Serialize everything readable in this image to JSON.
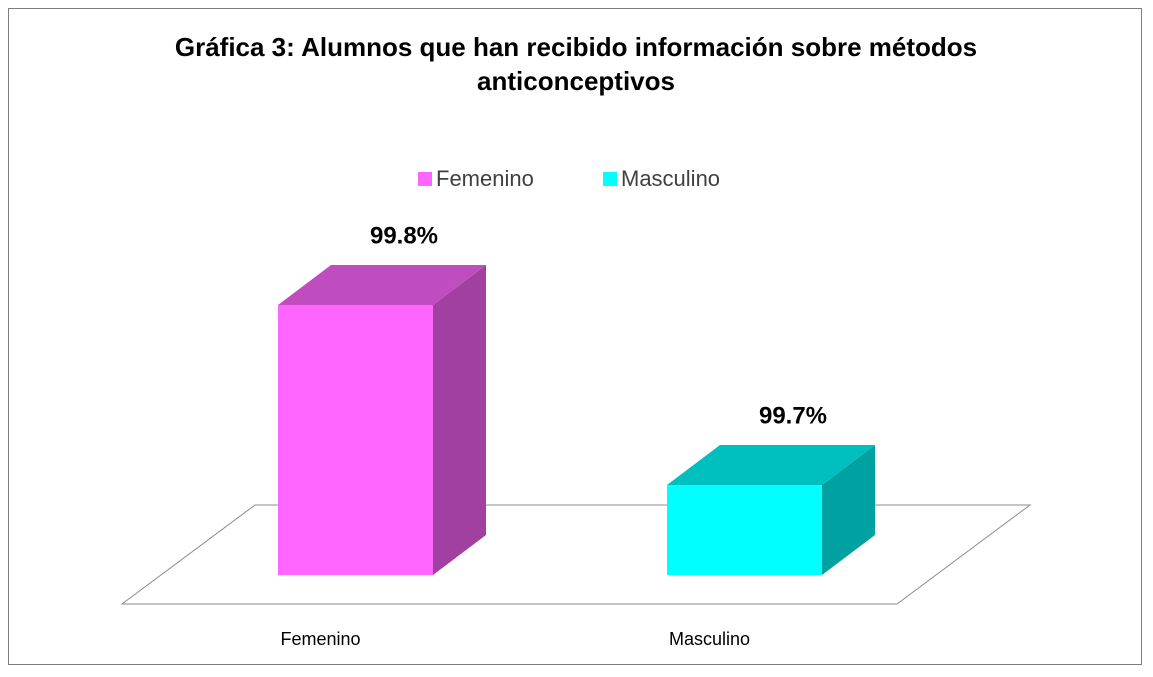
{
  "chart_data": {
    "type": "bar3d",
    "title": "Gráfica 3: Alumnos que han recibido información sobre métodos anticonceptivos",
    "categories": [
      "Femenino",
      "Masculino"
    ],
    "values": [
      99.8,
      99.7
    ],
    "value_labels": [
      "99.8%",
      "99.7%"
    ],
    "colors": [
      "#ff66ff",
      "#00ffff"
    ],
    "ylim": [
      99.65,
      99.8
    ],
    "legend": "top"
  }
}
